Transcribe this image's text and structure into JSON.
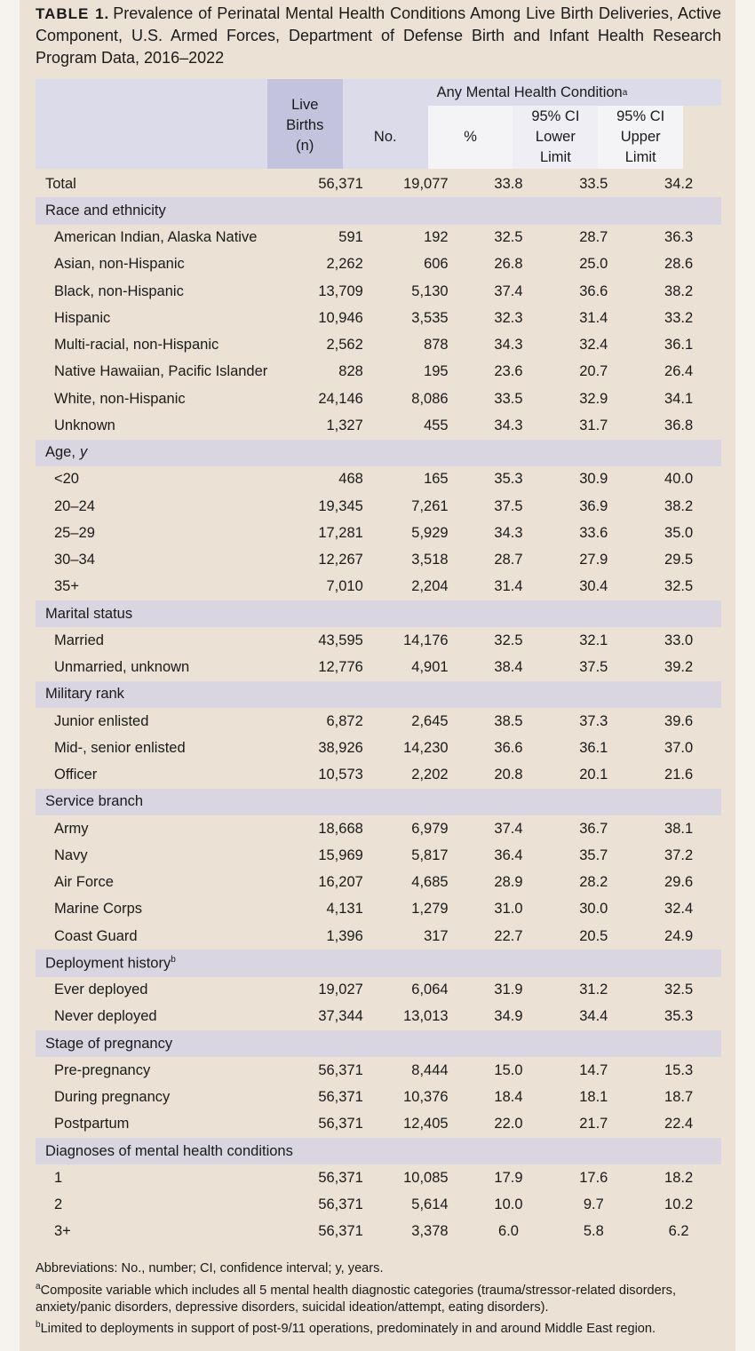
{
  "title": {
    "label": "TABLE 1.",
    "text": "Prevalence of Perinatal Mental Health Conditions Among Live Birth Deliveries, Active Component, U.S. Armed Forces, Department of Defense Birth and Infant Health Research Program Data, 2016–2022"
  },
  "table": {
    "header": {
      "live_births": [
        "Live",
        "Births",
        "(n)"
      ],
      "group": {
        "text": "Any Mental Health Condition",
        "note": "a"
      },
      "columns": [
        [
          "No."
        ],
        [
          "%"
        ],
        [
          "95% CI",
          "Lower",
          "Limit"
        ],
        [
          "95% CI",
          "Upper",
          "Limit"
        ]
      ]
    },
    "total": [
      "Total",
      "56,371",
      "19,077",
      "33.8",
      "33.5",
      "34.2"
    ],
    "sections": [
      {
        "label": "Race and ethnicity",
        "rows": [
          [
            "American Indian, Alaska Native",
            "591",
            "192",
            "32.5",
            "28.7",
            "36.3"
          ],
          [
            "Asian, non-Hispanic",
            "2,262",
            "606",
            "26.8",
            "25.0",
            "28.6"
          ],
          [
            "Black, non-Hispanic",
            "13,709",
            "5,130",
            "37.4",
            "36.6",
            "38.2"
          ],
          [
            "Hispanic",
            "10,946",
            "3,535",
            "32.3",
            "31.4",
            "33.2"
          ],
          [
            "Multi-racial, non-Hispanic",
            "2,562",
            "878",
            "34.3",
            "32.4",
            "36.1"
          ],
          [
            "Native Hawaiian, Pacific Islander",
            "828",
            "195",
            "23.6",
            "20.7",
            "26.4"
          ],
          [
            "White, non-Hispanic",
            "24,146",
            "8,086",
            "33.5",
            "32.9",
            "34.1"
          ],
          [
            "Unknown",
            "1,327",
            "455",
            "34.3",
            "31.7",
            "36.8"
          ]
        ]
      },
      {
        "label": "Age,",
        "italic": "y",
        "rows": [
          [
            "<20",
            "468",
            "165",
            "35.3",
            "30.9",
            "40.0"
          ],
          [
            "20–24",
            "19,345",
            "7,261",
            "37.5",
            "36.9",
            "38.2"
          ],
          [
            "25–29",
            "17,281",
            "5,929",
            "34.3",
            "33.6",
            "35.0"
          ],
          [
            "30–34",
            "12,267",
            "3,518",
            "28.7",
            "27.9",
            "29.5"
          ],
          [
            "35+",
            "7,010",
            "2,204",
            "31.4",
            "30.4",
            "32.5"
          ]
        ]
      },
      {
        "label": "Marital status",
        "rows": [
          [
            "Married",
            "43,595",
            "14,176",
            "32.5",
            "32.1",
            "33.0"
          ],
          [
            "Unmarried, unknown",
            "12,776",
            "4,901",
            "38.4",
            "37.5",
            "39.2"
          ]
        ]
      },
      {
        "label": "Military rank",
        "rows": [
          [
            "Junior enlisted",
            "6,872",
            "2,645",
            "38.5",
            "37.3",
            "39.6"
          ],
          [
            "Mid-, senior enlisted",
            "38,926",
            "14,230",
            "36.6",
            "36.1",
            "37.0"
          ],
          [
            "Officer",
            "10,573",
            "2,202",
            "20.8",
            "20.1",
            "21.6"
          ]
        ]
      },
      {
        "label": "Service branch",
        "rows": [
          [
            "Army",
            "18,668",
            "6,979",
            "37.4",
            "36.7",
            "38.1"
          ],
          [
            "Navy",
            "15,969",
            "5,817",
            "36.4",
            "35.7",
            "37.2"
          ],
          [
            "Air Force",
            "16,207",
            "4,685",
            "28.9",
            "28.2",
            "29.6"
          ],
          [
            "Marine Corps",
            "4,131",
            "1,279",
            "31.0",
            "30.0",
            "32.4"
          ],
          [
            "Coast Guard",
            "1,396",
            "317",
            "22.7",
            "20.5",
            "24.9"
          ]
        ]
      },
      {
        "label": "Deployment history",
        "note": "b",
        "rows": [
          [
            "Ever deployed",
            "19,027",
            "6,064",
            "31.9",
            "31.2",
            "32.5"
          ],
          [
            "Never deployed",
            "37,344",
            "13,013",
            "34.9",
            "34.4",
            "35.3"
          ]
        ]
      },
      {
        "label": "Stage of pregnancy",
        "rows": [
          [
            "Pre-pregnancy",
            "56,371",
            "8,444",
            "15.0",
            "14.7",
            "15.3"
          ],
          [
            "During pregnancy",
            "56,371",
            "10,376",
            "18.4",
            "18.1",
            "18.7"
          ],
          [
            "Postpartum",
            "56,371",
            "12,405",
            "22.0",
            "21.7",
            "22.4"
          ]
        ]
      },
      {
        "label": "Diagnoses of mental health conditions",
        "rows": [
          [
            "1",
            "56,371",
            "10,085",
            "17.9",
            "17.6",
            "18.2"
          ],
          [
            "2",
            "56,371",
            "5,614",
            "10.0",
            "9.7",
            "10.2"
          ],
          [
            "3+",
            "56,371",
            "3,378",
            "6.0",
            "5.8",
            "6.2"
          ]
        ]
      }
    ]
  },
  "footnotes": {
    "abbreviations": "Abbreviations: No., number; CI, confidence interval; y, years.",
    "notes": [
      {
        "marker": "a",
        "text": "Composite variable which includes all 5 mental health diagnostic categories (trauma/stressor-related disorders, anxiety/panic disorders, depressive disorders, suicidal ideation/attempt, eating disorders)."
      },
      {
        "marker": "b",
        "text": "Limited to deployments in support of post-9/11 operations, predominately in and around Middle East region."
      }
    ]
  }
}
